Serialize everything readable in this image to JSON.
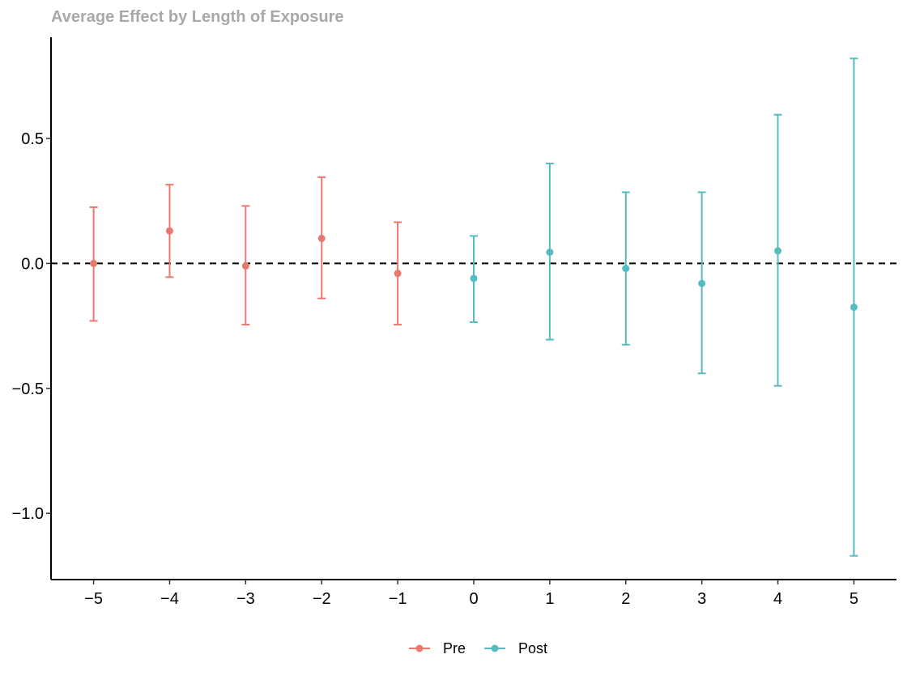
{
  "chart_data": {
    "type": "scatter",
    "title": "Average Effect by Length of Exposure",
    "xlabel": "",
    "ylabel": "",
    "x_ticks": [
      -5,
      -4,
      -3,
      -2,
      -1,
      0,
      1,
      2,
      3,
      4,
      5
    ],
    "x_tick_labels": [
      "−5",
      "−4",
      "−3",
      "−2",
      "−1",
      "0",
      "1",
      "2",
      "3",
      "4",
      "5"
    ],
    "y_ticks": [
      0.5,
      0.0,
      -0.5,
      -1.0
    ],
    "y_tick_labels": [
      "0.5",
      "0.0",
      "−0.5",
      "−1.0"
    ],
    "xlim": [
      -5.56,
      5.56
    ],
    "ylim": [
      -1.265,
      0.905
    ],
    "reference_line": {
      "y": 0,
      "style": "dashed",
      "color": "#000000"
    },
    "grid": false,
    "legend": {
      "position": "bottom",
      "entries": [
        {
          "label": "Pre",
          "color": "#E9786E"
        },
        {
          "label": "Post",
          "color": "#56BCC2"
        }
      ]
    },
    "series": [
      {
        "name": "Pre",
        "color": "#E9786E",
        "points": [
          {
            "x": -5,
            "y": 0.0,
            "lower": -0.23,
            "upper": 0.225
          },
          {
            "x": -4,
            "y": 0.13,
            "lower": -0.055,
            "upper": 0.315
          },
          {
            "x": -3,
            "y": -0.01,
            "lower": -0.245,
            "upper": 0.23
          },
          {
            "x": -2,
            "y": 0.1,
            "lower": -0.14,
            "upper": 0.345
          },
          {
            "x": -1,
            "y": -0.04,
            "lower": -0.245,
            "upper": 0.165
          }
        ]
      },
      {
        "name": "Post",
        "color": "#56BCC2",
        "points": [
          {
            "x": 0,
            "y": -0.06,
            "lower": -0.235,
            "upper": 0.11
          },
          {
            "x": 1,
            "y": 0.045,
            "lower": -0.305,
            "upper": 0.4
          },
          {
            "x": 2,
            "y": -0.02,
            "lower": -0.325,
            "upper": 0.285
          },
          {
            "x": 3,
            "y": -0.08,
            "lower": -0.44,
            "upper": 0.285
          },
          {
            "x": 4,
            "y": 0.05,
            "lower": -0.49,
            "upper": 0.595
          },
          {
            "x": 5,
            "y": -0.175,
            "lower": -1.17,
            "upper": 0.82
          }
        ]
      }
    ]
  }
}
